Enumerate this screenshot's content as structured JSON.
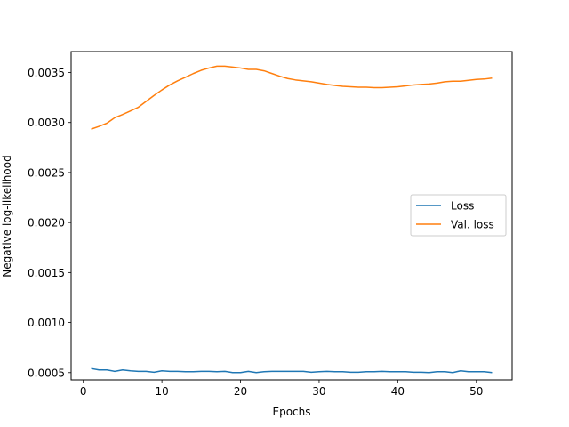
{
  "chart_data": {
    "type": "line",
    "xlabel": "Epochs",
    "ylabel": "Negative log-likelihood",
    "xlim": [
      -1.55,
      54.55
    ],
    "ylim": [
      0.000427,
      0.003709
    ],
    "xticks": [
      0,
      10,
      20,
      30,
      40,
      50
    ],
    "yticks": [
      0.0005,
      0.001,
      0.0015,
      0.002,
      0.0025,
      0.003,
      0.0035
    ],
    "ytick_labels": [
      "0.0005",
      "0.0010",
      "0.0015",
      "0.0020",
      "0.0025",
      "0.0030",
      "0.0035"
    ],
    "grid": false,
    "legend": "center-right",
    "colors": {
      "Loss": "#1f77b4",
      "Val. loss": "#ff7f0e"
    },
    "x": [
      1,
      2,
      3,
      4,
      5,
      6,
      7,
      8,
      9,
      10,
      11,
      12,
      13,
      14,
      15,
      16,
      17,
      18,
      19,
      20,
      21,
      22,
      23,
      24,
      25,
      26,
      27,
      28,
      29,
      30,
      31,
      32,
      33,
      34,
      35,
      36,
      37,
      38,
      39,
      40,
      41,
      42,
      43,
      44,
      45,
      46,
      47,
      48,
      49,
      50,
      51,
      52
    ],
    "series": [
      {
        "name": "Loss",
        "values": [
          0.000541,
          0.000527,
          0.000527,
          0.000513,
          0.000527,
          0.000518,
          0.000513,
          0.000513,
          0.000504,
          0.000518,
          0.000513,
          0.000513,
          0.000509,
          0.000509,
          0.000513,
          0.000513,
          0.000509,
          0.000513,
          0.0005,
          0.0005,
          0.000513,
          0.0005,
          0.000509,
          0.000513,
          0.000513,
          0.000513,
          0.000513,
          0.000513,
          0.000504,
          0.000509,
          0.000513,
          0.000509,
          0.000509,
          0.000504,
          0.000504,
          0.000509,
          0.000509,
          0.000513,
          0.000509,
          0.000509,
          0.000509,
          0.000504,
          0.000504,
          0.0005,
          0.000509,
          0.000509,
          0.0005,
          0.000518,
          0.000509,
          0.000509,
          0.000509,
          0.0005
        ]
      },
      {
        "name": "Val. loss",
        "values": [
          0.002934,
          0.002961,
          0.002993,
          0.003048,
          0.00308,
          0.003116,
          0.003153,
          0.003212,
          0.003271,
          0.003326,
          0.003376,
          0.003417,
          0.003453,
          0.00349,
          0.003522,
          0.003545,
          0.003563,
          0.003563,
          0.003554,
          0.003545,
          0.003531,
          0.003531,
          0.003517,
          0.00349,
          0.003463,
          0.00344,
          0.003426,
          0.003417,
          0.003408,
          0.003394,
          0.003381,
          0.003371,
          0.003362,
          0.003358,
          0.003353,
          0.003353,
          0.003349,
          0.003349,
          0.003353,
          0.003358,
          0.003367,
          0.003376,
          0.003381,
          0.003385,
          0.003394,
          0.003408,
          0.003413,
          0.003413,
          0.003422,
          0.003431,
          0.003435,
          0.003444
        ]
      }
    ]
  }
}
